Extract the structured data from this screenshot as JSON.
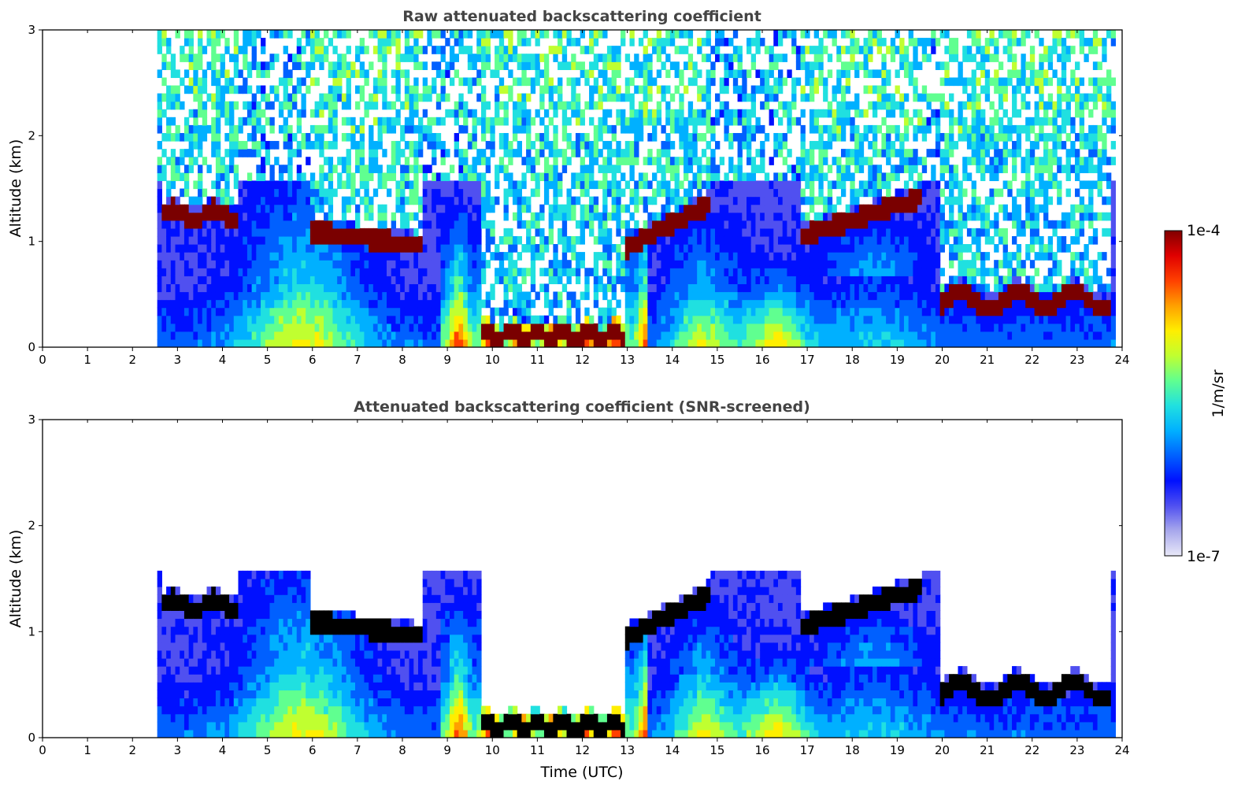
{
  "chart_data": [
    {
      "type": "heatmap",
      "title": "Raw attenuated backscattering coefficient",
      "xlabel": "",
      "ylabel": "Altitude (km)",
      "xlim": [
        0,
        24
      ],
      "ylim": [
        0,
        3
      ],
      "xticks": [
        "0",
        "1",
        "2",
        "3",
        "4",
        "5",
        "6",
        "7",
        "8",
        "9",
        "10",
        "11",
        "12",
        "13",
        "14",
        "15",
        "16",
        "17",
        "18",
        "19",
        "20",
        "21",
        "22",
        "23",
        "24"
      ],
      "yticks": [
        "0",
        "1",
        "2",
        "3"
      ],
      "data_start_hour": 2.55,
      "data_end_hour": 23.85,
      "noise_level": "high",
      "features": [
        {
          "name": "low cloud layer",
          "from_hour": 2.6,
          "to_hour": 4.4,
          "altitude_km": 1.25
        },
        {
          "name": "cloud layer",
          "from_hour": 6.0,
          "to_hour": 8.5,
          "altitude_km": 1.0
        },
        {
          "name": "deep aerosol/cloud column",
          "from_hour": 8.8,
          "to_hour": 13.5,
          "altitude_km": 0.9
        },
        {
          "name": "cloud layer",
          "from_hour": 13.0,
          "to_hour": 14.9,
          "altitude_km": 1.3
        },
        {
          "name": "cloud layer",
          "from_hour": 16.9,
          "to_hour": 19.6,
          "altitude_km": 1.3
        },
        {
          "name": "boundary layer cloud tops",
          "from_hour": 20.0,
          "to_hour": 23.8,
          "altitude_km": 0.45
        }
      ]
    },
    {
      "type": "heatmap",
      "title": "Attenuated backscattering coefficient (SNR-screened)",
      "xlabel": "Time (UTC)",
      "ylabel": "Altitude (km)",
      "xlim": [
        0,
        24
      ],
      "ylim": [
        0,
        3
      ],
      "xticks": [
        "0",
        "1",
        "2",
        "3",
        "4",
        "5",
        "6",
        "7",
        "8",
        "9",
        "10",
        "11",
        "12",
        "13",
        "14",
        "15",
        "16",
        "17",
        "18",
        "19",
        "20",
        "21",
        "22",
        "23",
        "24"
      ],
      "yticks": [
        "0",
        "1",
        "2",
        "3"
      ],
      "data_start_hour": 2.55,
      "data_end_hour": 23.85,
      "noise_level": "none",
      "features": [
        {
          "name": "low cloud layer",
          "from_hour": 2.6,
          "to_hour": 4.4,
          "altitude_km": 1.25
        },
        {
          "name": "cloud layer",
          "from_hour": 6.0,
          "to_hour": 8.5,
          "altitude_km": 1.0
        },
        {
          "name": "deep aerosol/cloud column",
          "from_hour": 8.8,
          "to_hour": 13.5,
          "altitude_km": 0.9
        },
        {
          "name": "cloud layer",
          "from_hour": 13.0,
          "to_hour": 14.9,
          "altitude_km": 1.3
        },
        {
          "name": "cloud layer",
          "from_hour": 16.9,
          "to_hour": 19.6,
          "altitude_km": 1.3
        },
        {
          "name": "boundary layer cloud tops",
          "from_hour": 20.0,
          "to_hour": 23.8,
          "altitude_km": 0.45
        }
      ]
    }
  ],
  "colorbar": {
    "label": "1/m/sr",
    "max_label": "1e-4",
    "min_label": "1e-7",
    "scale": "log",
    "range": [
      1e-07,
      0.0001
    ],
    "colors": [
      "#e8e8f8",
      "#a8a8ec",
      "#5050f0",
      "#0010ff",
      "#0060ff",
      "#00b0ff",
      "#20e0e0",
      "#60ff90",
      "#c0ff30",
      "#ffee00",
      "#ffa000",
      "#ff4000",
      "#e00000",
      "#800000"
    ]
  }
}
